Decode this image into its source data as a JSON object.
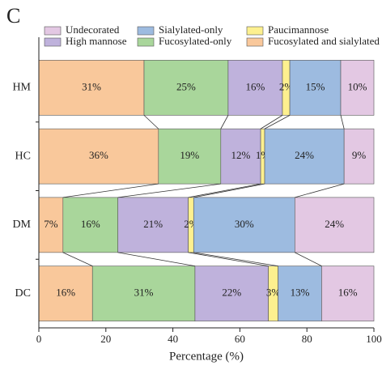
{
  "chart_data": {
    "type": "bar",
    "orientation": "horizontal",
    "stacked": true,
    "panel_label": "C",
    "x_label": "Percentage (%)",
    "categories": [
      "HM",
      "HC",
      "DM",
      "DC"
    ],
    "xlim": [
      0,
      100
    ],
    "xticks": [
      0,
      20,
      40,
      60,
      80,
      100
    ],
    "series": [
      {
        "name": "Fucosylated and sialylated",
        "color": "#f9c89b",
        "values": [
          31.4,
          35.7,
          7.2,
          16.0
        ],
        "value_labels": [
          "31%",
          "36%",
          "7%",
          "16%"
        ]
      },
      {
        "name": "Fucosylated-only",
        "color": "#a9d69b",
        "values": [
          25.1,
          18.6,
          16.4,
          30.6
        ],
        "value_labels": [
          "25%",
          "19%",
          "16%",
          "31%"
        ]
      },
      {
        "name": "High mannose",
        "color": "#bfb2dc",
        "values": [
          16.2,
          11.9,
          21.0,
          21.9
        ],
        "value_labels": [
          "16%",
          "12%",
          "21%",
          "22%"
        ]
      },
      {
        "name": "Paucimannose",
        "color": "#fdf08f",
        "values": [
          2.2,
          1.2,
          1.6,
          2.9
        ],
        "value_labels": [
          "2%",
          "1%",
          "2%",
          "3%"
        ]
      },
      {
        "name": "Sialylated-only",
        "color": "#9dbbe0",
        "values": [
          15.2,
          23.7,
          30.2,
          13.0
        ],
        "value_labels": [
          "15%",
          "24%",
          "30%",
          "13%"
        ]
      },
      {
        "name": "Undecorated",
        "color": "#e3c8e3",
        "values": [
          9.9,
          8.9,
          23.6,
          15.6
        ],
        "value_labels": [
          "10%",
          "9%",
          "24%",
          "16%"
        ]
      }
    ]
  }
}
